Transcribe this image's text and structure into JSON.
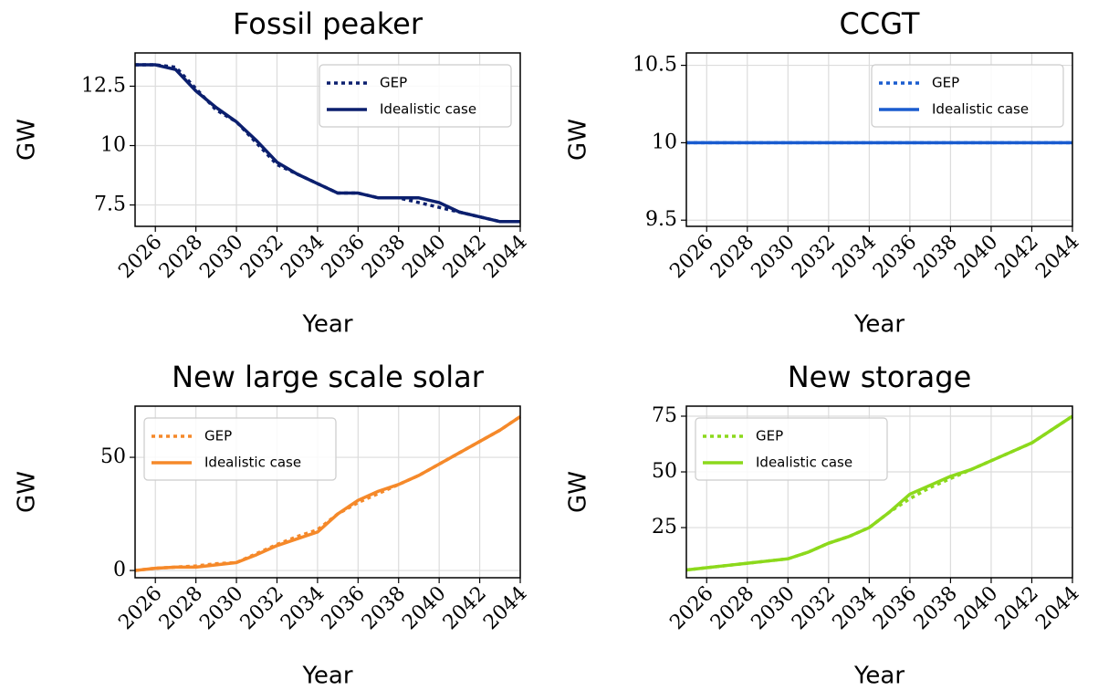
{
  "chart_data": [
    {
      "type": "line",
      "title": "Fossil peaker",
      "xlabel": "Year",
      "ylabel": "GW",
      "x": [
        2025,
        2026,
        2027,
        2028,
        2029,
        2030,
        2031,
        2032,
        2033,
        2034,
        2035,
        2036,
        2037,
        2038,
        2039,
        2040,
        2041,
        2042,
        2043,
        2044
      ],
      "series": [
        {
          "name": "GEP",
          "color": "#0b1f6e",
          "linestyle": "dotted",
          "values": [
            13.4,
            13.4,
            13.3,
            12.4,
            11.5,
            11.0,
            10.1,
            9.2,
            8.8,
            8.4,
            8.0,
            8.0,
            7.8,
            7.8,
            7.6,
            7.4,
            7.2,
            7.0,
            6.8,
            6.8
          ]
        },
        {
          "name": "Idealistic case",
          "color": "#0b1f6e",
          "linestyle": "solid",
          "values": [
            13.4,
            13.4,
            13.2,
            12.3,
            11.6,
            11.0,
            10.2,
            9.3,
            8.8,
            8.4,
            8.0,
            8.0,
            7.8,
            7.8,
            7.8,
            7.6,
            7.2,
            7.0,
            6.8,
            6.8
          ]
        }
      ],
      "xlim": [
        2025,
        2044
      ],
      "xticks": [
        2026,
        2028,
        2030,
        2032,
        2034,
        2036,
        2038,
        2040,
        2042,
        2044
      ],
      "ylim": [
        6.6,
        13.9
      ],
      "yticks": [
        7.5,
        10.0,
        12.5
      ],
      "grid": true,
      "legend": "upper right"
    },
    {
      "type": "line",
      "title": "CCGT",
      "xlabel": "Year",
      "ylabel": "GW",
      "x": [
        2025,
        2026,
        2027,
        2028,
        2029,
        2030,
        2031,
        2032,
        2033,
        2034,
        2035,
        2036,
        2037,
        2038,
        2039,
        2040,
        2041,
        2042,
        2043,
        2044
      ],
      "series": [
        {
          "name": "GEP",
          "color": "#1a5ccf",
          "linestyle": "dotted",
          "values": [
            10,
            10,
            10,
            10,
            10,
            10,
            10,
            10,
            10,
            10,
            10,
            10,
            10,
            10,
            10,
            10,
            10,
            10,
            10,
            10
          ]
        },
        {
          "name": "Idealistic case",
          "color": "#1a5ccf",
          "linestyle": "solid",
          "values": [
            10,
            10,
            10,
            10,
            10,
            10,
            10,
            10,
            10,
            10,
            10,
            10,
            10,
            10,
            10,
            10,
            10,
            10,
            10,
            10
          ]
        }
      ],
      "xlim": [
        2025,
        2044
      ],
      "xticks": [
        2026,
        2028,
        2030,
        2032,
        2034,
        2036,
        2038,
        2040,
        2042,
        2044
      ],
      "ylim": [
        9.46,
        10.58
      ],
      "yticks": [
        9.5,
        10.0,
        10.5
      ],
      "grid": true,
      "legend": "upper right"
    },
    {
      "type": "line",
      "title": "New large scale solar",
      "xlabel": "Year",
      "ylabel": "GW",
      "x": [
        2025,
        2026,
        2027,
        2028,
        2029,
        2030,
        2031,
        2032,
        2033,
        2034,
        2035,
        2036,
        2037,
        2038,
        2039,
        2040,
        2041,
        2042,
        2043,
        2044
      ],
      "series": [
        {
          "name": "GEP",
          "color": "#f5892a",
          "linestyle": "dotted",
          "values": [
            0,
            1,
            1.5,
            2,
            3,
            3.5,
            7.5,
            11.5,
            15,
            18,
            25,
            30,
            34,
            38,
            42,
            47,
            52,
            57,
            62,
            68
          ]
        },
        {
          "name": "Idealistic case",
          "color": "#f5892a",
          "linestyle": "solid",
          "values": [
            0,
            1,
            1.5,
            1.5,
            2.5,
            3.5,
            7,
            11,
            14,
            17,
            25,
            31,
            35,
            38,
            42,
            47,
            52,
            57,
            62,
            68
          ]
        }
      ],
      "xlim": [
        2025,
        2044
      ],
      "xticks": [
        2026,
        2028,
        2030,
        2032,
        2034,
        2036,
        2038,
        2040,
        2042,
        2044
      ],
      "ylim": [
        -3.2,
        72.6
      ],
      "yticks": [
        0,
        50
      ],
      "grid": true,
      "legend": "upper left"
    },
    {
      "type": "line",
      "title": "New storage",
      "xlabel": "Year",
      "ylabel": "GW",
      "x": [
        2025,
        2026,
        2027,
        2028,
        2029,
        2030,
        2031,
        2032,
        2033,
        2034,
        2035,
        2036,
        2037,
        2038,
        2039,
        2040,
        2041,
        2042,
        2043,
        2044
      ],
      "series": [
        {
          "name": "GEP",
          "color": "#8cd91c",
          "linestyle": "dotted",
          "values": [
            6,
            7,
            8,
            9,
            10,
            11,
            14,
            18,
            21,
            25,
            32,
            38,
            43,
            47,
            51,
            55,
            59,
            63,
            69,
            75
          ]
        },
        {
          "name": "Idealistic case",
          "color": "#8cd91c",
          "linestyle": "solid",
          "values": [
            6,
            7,
            8,
            9,
            10,
            11,
            14,
            18,
            21,
            25,
            32,
            40,
            44,
            48,
            51,
            55,
            59,
            63,
            69,
            75
          ]
        }
      ],
      "xlim": [
        2025,
        2044
      ],
      "xticks": [
        2026,
        2028,
        2030,
        2032,
        2034,
        2036,
        2038,
        2040,
        2042,
        2044
      ],
      "ylim": [
        2.5,
        79.5
      ],
      "yticks": [
        25,
        50,
        75
      ],
      "grid": true,
      "legend": "upper left"
    }
  ]
}
